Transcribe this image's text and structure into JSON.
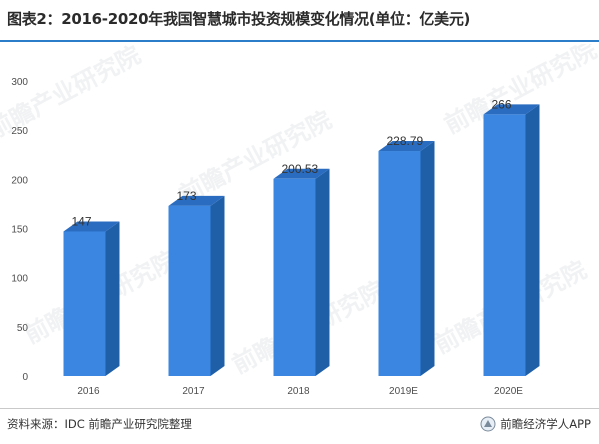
{
  "header": {
    "title": "图表2：2016-2020年我国智慧城市投资规模变化情况(单位：亿美元)"
  },
  "footer": {
    "source": "资料来源：IDC 前瞻产业研究院整理",
    "brand": "前瞻经济学人APP"
  },
  "watermark": {
    "text": "前瞻产业研究院"
  },
  "colors": {
    "bar_front": "#3a86e0",
    "bar_side": "#1f5fa8",
    "bar_top": "#2a6cc0",
    "accent": "#2b7dc9"
  },
  "chart_data": {
    "type": "bar",
    "title": "图表2：2016-2020年我国智慧城市投资规模变化情况(单位：亿美元)",
    "categories": [
      "2016",
      "2017",
      "2018",
      "2019E",
      "2020E"
    ],
    "values": [
      147,
      173,
      200.53,
      228.79,
      266
    ],
    "value_labels": [
      "147",
      "173",
      "200.53",
      "228.79",
      "266"
    ],
    "ylim": [
      0,
      300
    ],
    "yticks": [
      "0",
      "50",
      "100",
      "150",
      "200",
      "250",
      "300"
    ],
    "xlabel": "",
    "ylabel": "",
    "grid": false,
    "legend": "none",
    "style": "3d-column"
  }
}
